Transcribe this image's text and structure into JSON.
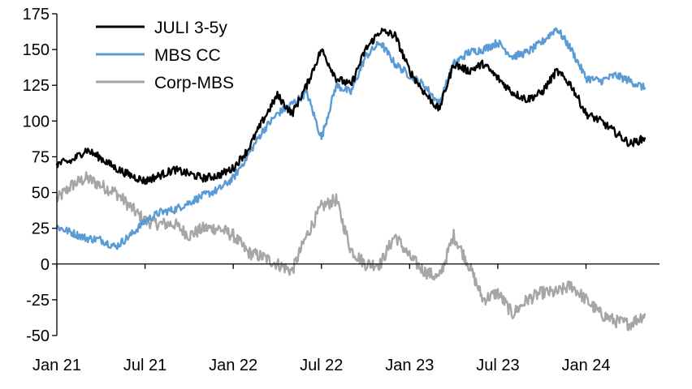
{
  "chart_data": {
    "type": "line",
    "title": "",
    "xlabel": "",
    "ylabel": "",
    "ylim": [
      -50,
      175
    ],
    "yticks": [
      175,
      150,
      125,
      100,
      75,
      50,
      25,
      0,
      -25,
      -50
    ],
    "ytick_labels": [
      "175",
      "150",
      "125",
      "100",
      "75",
      "50",
      "25",
      "0",
      "-25",
      "-50"
    ],
    "xlim": [
      "2021-01-01",
      "2024-06-01"
    ],
    "xticks": [
      {
        "date": "2021-01-01",
        "label": "Jan 21"
      },
      {
        "date": "2021-07-01",
        "label": "Jul 21"
      },
      {
        "date": "2022-01-01",
        "label": "Jan 22"
      },
      {
        "date": "2022-07-01",
        "label": "Jul 22"
      },
      {
        "date": "2023-01-01",
        "label": "Jan 23"
      },
      {
        "date": "2023-07-01",
        "label": "Jul 23"
      },
      {
        "date": "2024-01-01",
        "label": "Jan 24"
      }
    ],
    "legend_position": "top-left",
    "grid": false,
    "x": [
      "2021-01",
      "2021-02",
      "2021-03",
      "2021-04",
      "2021-05",
      "2021-06",
      "2021-07",
      "2021-08",
      "2021-09",
      "2021-10",
      "2021-11",
      "2021-12",
      "2022-01",
      "2022-02",
      "2022-03",
      "2022-04",
      "2022-05",
      "2022-06",
      "2022-07",
      "2022-08",
      "2022-09",
      "2022-10",
      "2022-11",
      "2022-12",
      "2023-01",
      "2023-02",
      "2023-03",
      "2023-04",
      "2023-05",
      "2023-06",
      "2023-07",
      "2023-08",
      "2023-09",
      "2023-10",
      "2023-11",
      "2023-12",
      "2024-01",
      "2024-02",
      "2024-03",
      "2024-04",
      "2024-05"
    ],
    "series": [
      {
        "name": "JULI 3-5y",
        "color": "#000000",
        "values": [
          70,
          72,
          80,
          74,
          67,
          62,
          58,
          62,
          66,
          63,
          60,
          62,
          67,
          80,
          100,
          118,
          105,
          125,
          150,
          130,
          125,
          150,
          163,
          160,
          135,
          120,
          108,
          140,
          135,
          140,
          130,
          120,
          115,
          120,
          135,
          125,
          105,
          100,
          92,
          84,
          88
        ]
      },
      {
        "name": "MBS CC",
        "color": "#5b9bd5",
        "values": [
          26,
          22,
          18,
          17,
          12,
          20,
          30,
          36,
          38,
          43,
          48,
          52,
          60,
          76,
          93,
          105,
          112,
          120,
          88,
          125,
          120,
          145,
          155,
          140,
          132,
          125,
          112,
          140,
          148,
          150,
          155,
          145,
          148,
          155,
          165,
          150,
          130,
          128,
          132,
          128,
          123
        ]
      },
      {
        "name": "Corp-MBS",
        "color": "#a6a6a6",
        "values": [
          45,
          55,
          60,
          55,
          50,
          40,
          30,
          28,
          28,
          20,
          25,
          25,
          20,
          8,
          5,
          0,
          -5,
          20,
          40,
          45,
          10,
          0,
          0,
          20,
          5,
          -5,
          -10,
          20,
          0,
          -25,
          -20,
          -35,
          -25,
          -20,
          -20,
          -15,
          -25,
          -35,
          -40,
          -42,
          -35
        ]
      }
    ]
  }
}
